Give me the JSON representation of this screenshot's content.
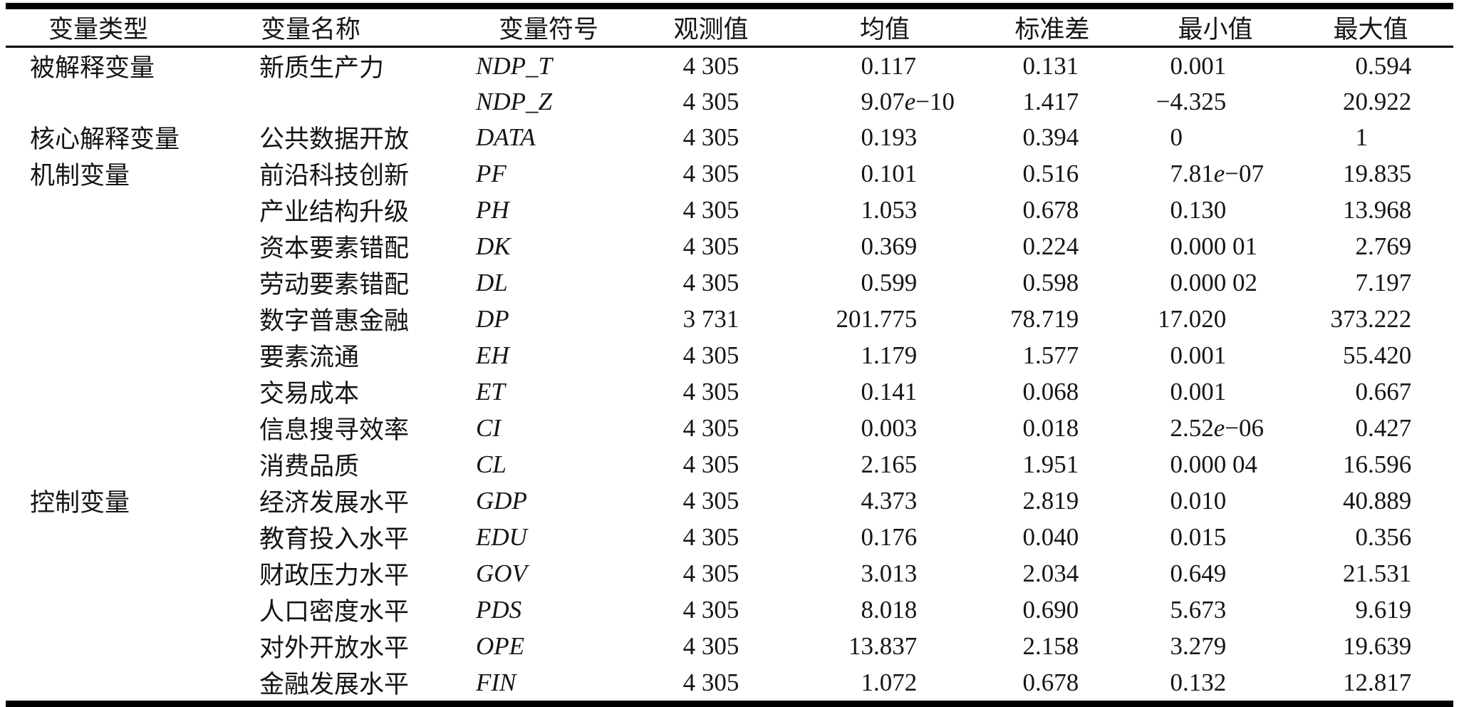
{
  "page": {
    "background": "#ffffff",
    "text_color": "#151515",
    "rule_color": "#000000"
  },
  "table": {
    "headers": [
      "变量类型",
      "变量名称",
      "变量符号",
      "观测值",
      "均值",
      "标准差",
      "最小值",
      "最大值"
    ],
    "rows": [
      {
        "type": "被解释变量",
        "name": "新质生产力",
        "symbol": "NDP_T",
        "obs": "4 305",
        "mean": "0.117",
        "sd": "0.131",
        "min": "0.001",
        "max": "0.594"
      },
      {
        "type": "",
        "name": "",
        "symbol": "NDP_Z",
        "obs": "4 305",
        "mean": "9.07e−10",
        "sd": "1.417",
        "min": "−4.325",
        "max": "20.922"
      },
      {
        "type": "核心解释变量",
        "name": "公共数据开放",
        "symbol": "DATA",
        "obs": "4 305",
        "mean": "0.193",
        "sd": "0.394",
        "min": "0",
        "max": "1"
      },
      {
        "type": "机制变量",
        "name": "前沿科技创新",
        "symbol": "PF",
        "obs": "4 305",
        "mean": "0.101",
        "sd": "0.516",
        "min": "7.81e−07",
        "max": "19.835"
      },
      {
        "type": "",
        "name": "产业结构升级",
        "symbol": "PH",
        "obs": "4 305",
        "mean": "1.053",
        "sd": "0.678",
        "min": "0.130",
        "max": "13.968"
      },
      {
        "type": "",
        "name": "资本要素错配",
        "symbol": "DK",
        "obs": "4 305",
        "mean": "0.369",
        "sd": "0.224",
        "min": "0.000 01",
        "max": "2.769"
      },
      {
        "type": "",
        "name": "劳动要素错配",
        "symbol": "DL",
        "obs": "4 305",
        "mean": "0.599",
        "sd": "0.598",
        "min": "0.000 02",
        "max": "7.197"
      },
      {
        "type": "",
        "name": "数字普惠金融",
        "symbol": "DP",
        "obs": "3 731",
        "mean": "201.775",
        "sd": "78.719",
        "min": "17.020",
        "max": "373.222"
      },
      {
        "type": "",
        "name": "要素流通",
        "symbol": "EH",
        "obs": "4 305",
        "mean": "1.179",
        "sd": "1.577",
        "min": "0.001",
        "max": "55.420"
      },
      {
        "type": "",
        "name": "交易成本",
        "symbol": "ET",
        "obs": "4 305",
        "mean": "0.141",
        "sd": "0.068",
        "min": "0.001",
        "max": "0.667"
      },
      {
        "type": "",
        "name": "信息搜寻效率",
        "symbol": "CI",
        "obs": "4 305",
        "mean": "0.003",
        "sd": "0.018",
        "min": "2.52e−06",
        "max": "0.427"
      },
      {
        "type": "",
        "name": "消费品质",
        "symbol": "CL",
        "obs": "4 305",
        "mean": "2.165",
        "sd": "1.951",
        "min": "0.000 04",
        "max": "16.596"
      },
      {
        "type": "控制变量",
        "name": "经济发展水平",
        "symbol": "GDP",
        "obs": "4 305",
        "mean": "4.373",
        "sd": "2.819",
        "min": "0.010",
        "max": "40.889"
      },
      {
        "type": "",
        "name": "教育投入水平",
        "symbol": "EDU",
        "obs": "4 305",
        "mean": "0.176",
        "sd": "0.040",
        "min": "0.015",
        "max": "0.356"
      },
      {
        "type": "",
        "name": "财政压力水平",
        "symbol": "GOV",
        "obs": "4 305",
        "mean": "3.013",
        "sd": "2.034",
        "min": "0.649",
        "max": "21.531"
      },
      {
        "type": "",
        "name": "人口密度水平",
        "symbol": "PDS",
        "obs": "4 305",
        "mean": "8.018",
        "sd": "0.690",
        "min": "5.673",
        "max": "9.619"
      },
      {
        "type": "",
        "name": "对外开放水平",
        "symbol": "OPE",
        "obs": "4 305",
        "mean": "13.837",
        "sd": "2.158",
        "min": "3.279",
        "max": "19.639"
      },
      {
        "type": "",
        "name": "金融发展水平",
        "symbol": "FIN",
        "obs": "4 305",
        "mean": "1.072",
        "sd": "0.678",
        "min": "0.132",
        "max": "12.817"
      }
    ]
  }
}
